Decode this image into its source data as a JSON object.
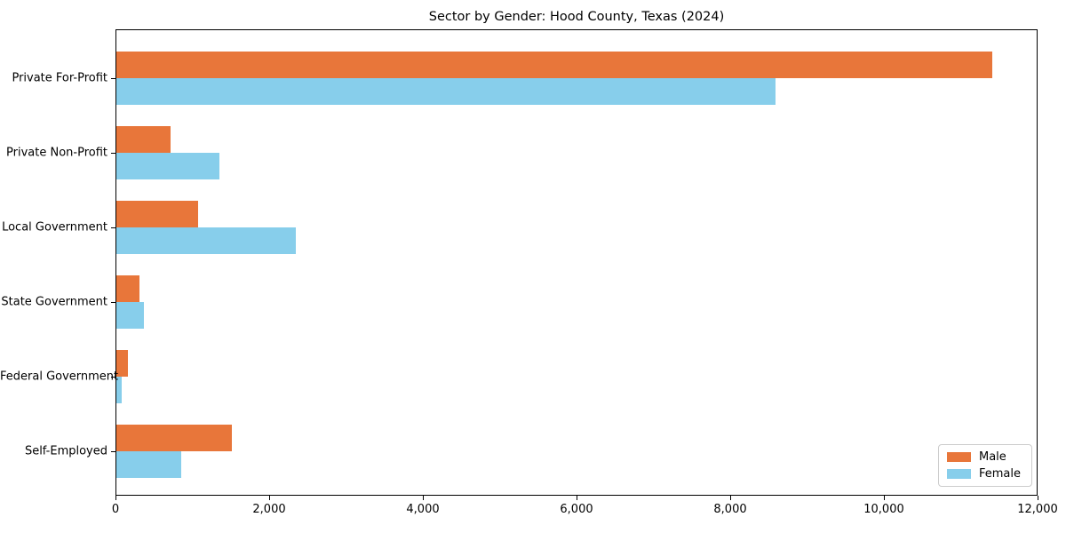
{
  "chart_data": {
    "type": "bar",
    "orientation": "horizontal",
    "title": "Sector by Gender: Hood County, Texas (2024)",
    "categories": [
      "Private For-Profit",
      "Private Non-Profit",
      "Local Government",
      "State Government",
      "Federal Government",
      "Self-Employed"
    ],
    "series": [
      {
        "name": "Male",
        "color": "#e8763a",
        "values": [
          11420,
          710,
          1070,
          305,
          145,
          1505
        ]
      },
      {
        "name": "Female",
        "color": "#87ceeb",
        "values": [
          8600,
          1340,
          2340,
          360,
          75,
          845
        ]
      }
    ],
    "xlabel": "",
    "ylabel": "",
    "xlim": [
      0,
      12000
    ],
    "x_ticks": [
      0,
      2000,
      4000,
      6000,
      8000,
      10000,
      12000
    ],
    "x_tick_labels": [
      "0",
      "2,000",
      "4,000",
      "6,000",
      "8,000",
      "10,000",
      "12,000"
    ],
    "grid": false,
    "legend_position": "lower right"
  }
}
